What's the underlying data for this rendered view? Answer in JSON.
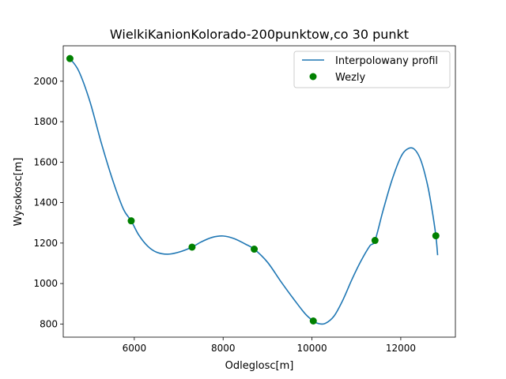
{
  "chart_data": {
    "type": "line",
    "title": "WielkiKanionKolorado-200punktow,co 30 punkt",
    "xlabel": "Odleglosc[m]",
    "ylabel": "Wysokosc[m]",
    "xlim": [
      4400,
      13230
    ],
    "ylim": [
      735,
      2175
    ],
    "xticks": [
      6000,
      8000,
      10000,
      12000
    ],
    "xtick_labels": [
      "6000",
      "8000",
      "10000",
      "12000"
    ],
    "yticks": [
      800,
      1000,
      1200,
      1400,
      1600,
      1800,
      2000
    ],
    "ytick_labels": [
      "800",
      "1000",
      "1200",
      "1400",
      "1600",
      "1800",
      "2000"
    ],
    "grid": false,
    "legend": {
      "placement": "upper-right",
      "entries": [
        "Interpolowany profil",
        "Wezly"
      ]
    },
    "series": [
      {
        "name": "Interpolowany profil",
        "kind": "line",
        "color": "#1f77b4",
        "x": [
          4550,
          4750,
          5000,
          5250,
          5500,
          5750,
          5930,
          6100,
          6300,
          6500,
          6750,
          7000,
          7300,
          7500,
          7750,
          8000,
          8250,
          8500,
          8700,
          9000,
          9300,
          9600,
          9850,
          10030,
          10150,
          10300,
          10500,
          10700,
          10900,
          11100,
          11300,
          11420,
          11600,
          11800,
          12000,
          12150,
          12300,
          12450,
          12600,
          12700,
          12790,
          12830
        ],
        "y": [
          2112,
          2050,
          1900,
          1700,
          1520,
          1370,
          1310,
          1240,
          1185,
          1155,
          1145,
          1155,
          1180,
          1205,
          1228,
          1235,
          1222,
          1195,
          1170,
          1105,
          1010,
          920,
          850,
          815,
          802,
          803,
          840,
          920,
          1020,
          1110,
          1185,
          1213,
          1360,
          1510,
          1625,
          1665,
          1665,
          1610,
          1490,
          1370,
          1236,
          1140
        ]
      },
      {
        "name": "Wezly",
        "kind": "markers",
        "color": "#008000",
        "x": [
          4550,
          5930,
          7300,
          8700,
          10030,
          11420,
          12790
        ],
        "y": [
          2112,
          1310,
          1180,
          1170,
          815,
          1213,
          1236
        ]
      }
    ]
  }
}
